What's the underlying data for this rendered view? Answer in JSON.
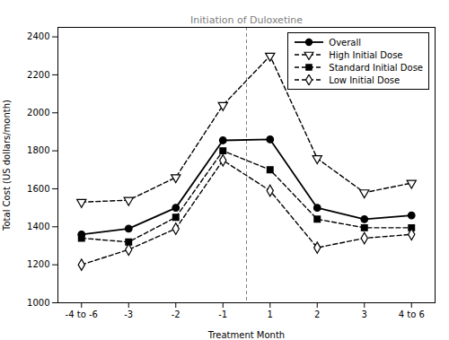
{
  "chart_data": {
    "type": "line",
    "categories": [
      "-4 to -6",
      "-3",
      "-2",
      "-1",
      "1",
      "2",
      "3",
      "4 to 6"
    ],
    "series": [
      {
        "name": "Overall",
        "color": "#000000",
        "line_style": "solid",
        "marker": "circle",
        "values": [
          1360,
          1390,
          1500,
          1855,
          1860,
          1500,
          1440,
          1460
        ]
      },
      {
        "name": "High Initial Dose",
        "color": "#000000",
        "line_style": "dashed",
        "marker": "triangle-down-open",
        "values": [
          1530,
          1540,
          1660,
          2040,
          2300,
          1760,
          1580,
          1630
        ]
      },
      {
        "name": "Standard Initial Dose",
        "color": "#000000",
        "line_style": "dashed",
        "marker": "square",
        "values": [
          1340,
          1320,
          1450,
          1800,
          1700,
          1440,
          1395,
          1395
        ]
      },
      {
        "name": "Low Initial Dose",
        "color": "#000000",
        "line_style": "dashed",
        "marker": "diamond-open",
        "values": [
          1200,
          1280,
          1390,
          1750,
          1590,
          1290,
          1340,
          1360
        ]
      }
    ],
    "annotations": [
      {
        "text": "Initiation of Duloxetine",
        "x": 3.5
      }
    ],
    "xlabel": "Treatment Month",
    "ylabel": "Total Cost (US dollars/month)",
    "ylim": [
      1000,
      2450
    ],
    "yticks": [
      1000,
      1200,
      1400,
      1600,
      1800,
      2000,
      2200,
      2400
    ],
    "legend": "upper right"
  }
}
